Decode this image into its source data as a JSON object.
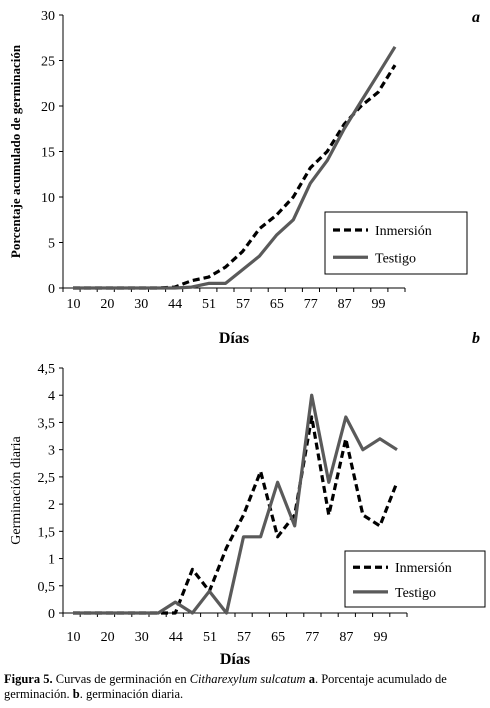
{
  "caption": {
    "label": "Figura 5.",
    "text_1": " Curvas de germinación en ",
    "species": "Citharexylum sulcatum",
    "text_2": " a",
    "text_3": ". Porcentaje acumulado de germinación. ",
    "b_label": "b",
    "text_4": ". germinación diaria."
  },
  "chart_data": [
    {
      "panel_label": "a",
      "type": "line",
      "title": "",
      "xlabel": "Días",
      "ylabel": "Porcentaje acumulado de germinación",
      "x_tick_labels": [
        "10",
        "20",
        "30",
        "44",
        "51",
        "57",
        "65",
        "77",
        "87",
        "99"
      ],
      "y_ticks": [
        "0",
        "5",
        "10",
        "15",
        "20",
        "25",
        "30"
      ],
      "ylim": [
        0,
        30
      ],
      "grid": false,
      "legend_position": "bottom-right",
      "series": [
        {
          "name": "Inmersión",
          "style": "dashed",
          "color": "#000000",
          "values": [
            0,
            0,
            0,
            0,
            0,
            0,
            0.1,
            0.8,
            1.2,
            2.3,
            4,
            6.5,
            8,
            10,
            13.2,
            15,
            18,
            20,
            21.5,
            24.5
          ]
        },
        {
          "name": "Testigo",
          "style": "solid",
          "color": "#5a5a5a",
          "values": [
            0,
            0,
            0,
            0,
            0,
            0,
            0,
            0.1,
            0.5,
            0.5,
            2,
            3.5,
            5.8,
            7.5,
            11.5,
            14,
            17.5,
            20.5,
            23.5,
            26.5
          ]
        }
      ]
    },
    {
      "panel_label": "b",
      "type": "line",
      "title": "",
      "xlabel": "Días",
      "ylabel": "Germinación diaria",
      "x_tick_labels": [
        "10",
        "20",
        "30",
        "44",
        "51",
        "57",
        "65",
        "77",
        "87",
        "99"
      ],
      "y_ticks": [
        "0",
        "0,5",
        "1",
        "1,5",
        "2",
        "2,5",
        "3",
        "3,5",
        "4",
        "4,5"
      ],
      "ylim": [
        0,
        4.5
      ],
      "grid": false,
      "legend_position": "bottom-right",
      "series": [
        {
          "name": "Inmersión",
          "style": "dashed",
          "color": "#000000",
          "values": [
            0,
            0,
            0,
            0,
            0,
            0,
            0,
            0.8,
            0.4,
            1.2,
            1.8,
            2.6,
            1.4,
            1.8,
            3.6,
            1.8,
            3.2,
            1.8,
            1.6,
            2.4
          ]
        },
        {
          "name": "Testigo",
          "style": "solid",
          "color": "#5a5a5a",
          "values": [
            0,
            0,
            0,
            0,
            0,
            0,
            0.2,
            0,
            0.4,
            0,
            1.4,
            1.4,
            2.4,
            1.6,
            4,
            2.4,
            3.6,
            3,
            3.2,
            3
          ]
        }
      ]
    }
  ]
}
